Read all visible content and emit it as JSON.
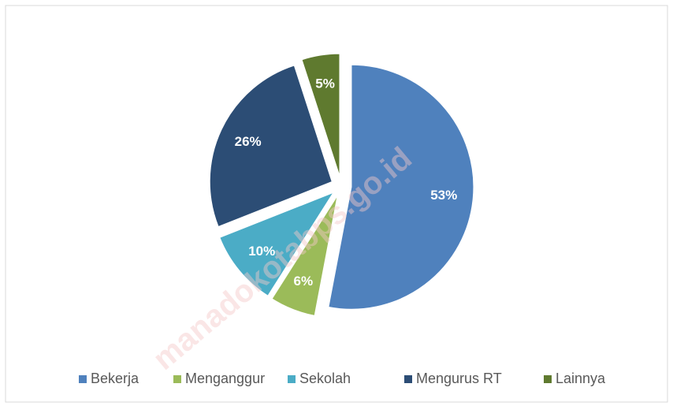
{
  "chart_data": {
    "type": "pie",
    "categories": [
      "Bekerja",
      "Menganggur",
      "Sekolah",
      "Mengurus RT",
      "Lainnya"
    ],
    "values": [
      53,
      6,
      10,
      26,
      5
    ],
    "value_labels": [
      "53%",
      "6%",
      "10%",
      "26%",
      "5%"
    ],
    "colors": [
      "#4f81bd",
      "#9bbb59",
      "#4bacc6",
      "#2c4d75",
      "#5f7a2f"
    ],
    "legend": "bottom"
  },
  "watermark": "manadokotabps.go.id"
}
